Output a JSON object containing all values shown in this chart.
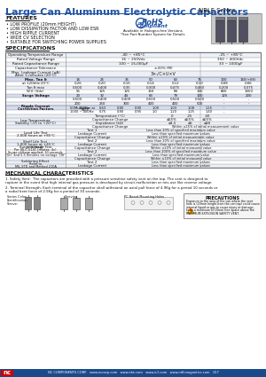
{
  "title": "Large Can Aluminum Electrolytic Capacitors",
  "series": "NRLF Series",
  "features": [
    "LOW PROFILE (20mm HEIGHT)",
    "LOW DISSIPATION FACTOR AND LOW ESR",
    "HIGH RIPPLE CURRENT",
    "WIDE CV SELECTION",
    "SUITABLE FOR SWITCHING POWER SUPPLIES"
  ],
  "rohs_note": "Available in Halogen-free Versions",
  "part_note": "*See Part Number System for Details",
  "bg_color": "#ffffff",
  "blue": "#2255A4",
  "dark": "#111111",
  "mid_gray": "#AAAAAA",
  "light_row": "#EBF0F8",
  "white_row": "#FFFFFF",
  "header_row": "#D4DCF0",
  "footer_bg": "#1A4A8A",
  "footer_text": "NC COMPONENTS CORP.   www.nccorp.com   www.eke.com   www.ic1.com   www.nrlf-magnetics.com   157",
  "mech_title": "MECHANICAL CHARACTERISTICS",
  "mech1": "1. Safety Vent:  The capacitors are provided with a pressure sensitive safety vent on the top. The vent is designed to",
  "mech1b": "rupture in the event that high internal gas pressure is developed by circuit malfunction or mis-use like reverse voltage.",
  "mech2": "2. Terminal Strength: Each terminal of the capacitor shall withstand an axial pull force of 4.9Kg for a period 10 seconds or",
  "mech2b": "a radial bent force of 2.5Kg for a period of 30 seconds."
}
